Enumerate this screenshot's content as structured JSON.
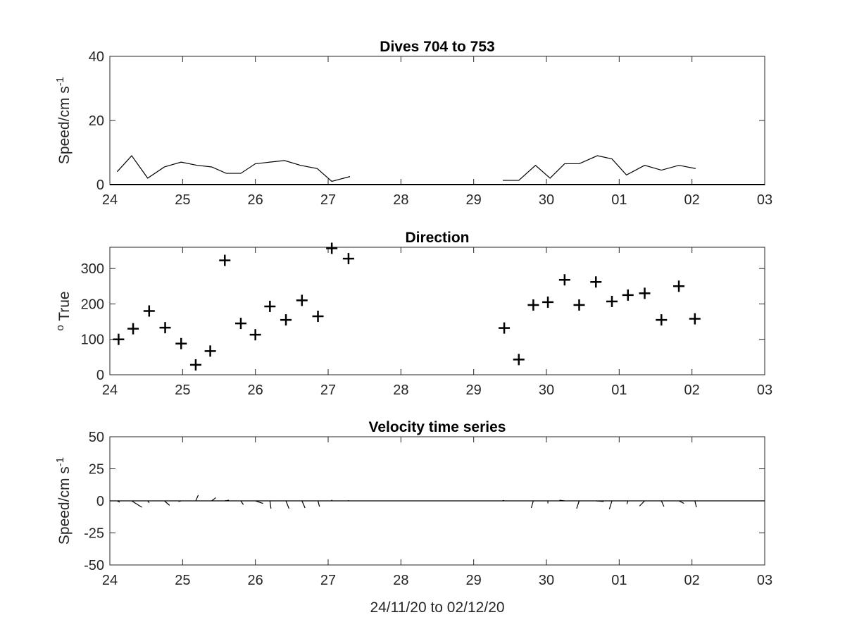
{
  "figure": {
    "xlabel": "24/11/20 to 02/12/20"
  },
  "chart_data": [
    {
      "type": "line",
      "title": "Dives 704 to 753",
      "ylabel": "Speed/cm s",
      "ylabel_superscript": "-1",
      "xlim": [
        0,
        9
      ],
      "ylim": [
        0,
        40
      ],
      "xticks": [
        "24",
        "25",
        "26",
        "27",
        "28",
        "29",
        "30",
        "01",
        "02",
        "03"
      ],
      "yticks": [
        "0",
        "20",
        "40"
      ],
      "grid": false,
      "series": [
        {
          "segments": [
            [
              [
                0.1,
                4.0
              ],
              [
                0.3,
                9.0
              ],
              [
                0.52,
                2.0
              ],
              [
                0.75,
                5.5
              ],
              [
                0.98,
                7.0
              ],
              [
                1.2,
                6.0
              ],
              [
                1.4,
                5.5
              ],
              [
                1.6,
                3.5
              ],
              [
                1.8,
                3.5
              ],
              [
                2.0,
                6.5
              ],
              [
                2.2,
                7.0
              ],
              [
                2.4,
                7.5
              ],
              [
                2.62,
                6.0
              ],
              [
                2.85,
                5.0
              ],
              [
                3.05,
                1.0
              ],
              [
                3.3,
                2.5
              ]
            ],
            [
              [
                5.4,
                1.3
              ],
              [
                5.62,
                1.3
              ],
              [
                5.85,
                6.0
              ],
              [
                6.05,
                2.0
              ],
              [
                6.25,
                6.5
              ],
              [
                6.45,
                6.5
              ],
              [
                6.7,
                9.0
              ],
              [
                6.9,
                8.0
              ],
              [
                7.1,
                3.0
              ],
              [
                7.35,
                6.0
              ],
              [
                7.58,
                4.5
              ],
              [
                7.82,
                6.0
              ],
              [
                8.05,
                5.0
              ]
            ]
          ]
        }
      ]
    },
    {
      "type": "scatter",
      "title": "Direction",
      "ylabel": "True",
      "ylabel_prefix": "o",
      "xlim": [
        0,
        9
      ],
      "ylim": [
        0,
        360
      ],
      "xticks": [
        "24",
        "25",
        "26",
        "27",
        "28",
        "29",
        "30",
        "01",
        "02",
        "03"
      ],
      "yticks": [
        "0",
        "100",
        "200",
        "300"
      ],
      "marker": "+",
      "grid": false,
      "points": [
        [
          0.12,
          100
        ],
        [
          0.32,
          130
        ],
        [
          0.54,
          180
        ],
        [
          0.76,
          133
        ],
        [
          0.98,
          88
        ],
        [
          1.18,
          28
        ],
        [
          1.38,
          67
        ],
        [
          1.58,
          323
        ],
        [
          1.8,
          145
        ],
        [
          2.0,
          113
        ],
        [
          2.2,
          193
        ],
        [
          2.42,
          155
        ],
        [
          2.64,
          210
        ],
        [
          2.86,
          165
        ],
        [
          3.05,
          357
        ],
        [
          3.28,
          328
        ],
        [
          5.42,
          132
        ],
        [
          5.62,
          43
        ],
        [
          5.82,
          197
        ],
        [
          6.02,
          205
        ],
        [
          6.25,
          268
        ],
        [
          6.45,
          197
        ],
        [
          6.68,
          262
        ],
        [
          6.9,
          207
        ],
        [
          7.12,
          225
        ],
        [
          7.35,
          230
        ],
        [
          7.58,
          155
        ],
        [
          7.82,
          250
        ],
        [
          8.04,
          158
        ]
      ]
    },
    {
      "type": "line",
      "title": "Velocity time series",
      "ylabel": "Speed/cm s",
      "ylabel_superscript": "-1",
      "xlim": [
        0,
        9
      ],
      "ylim": [
        -50,
        50
      ],
      "xticks": [
        "24",
        "25",
        "26",
        "27",
        "28",
        "29",
        "30",
        "01",
        "02",
        "03"
      ],
      "yticks": [
        "50",
        "25",
        "0",
        "-25",
        "-50"
      ],
      "grid": false,
      "note_style": "stick plot",
      "sticks": [
        [
          0.1,
          0.5,
          -1.0
        ],
        [
          0.3,
          2.0,
          -5.0
        ],
        [
          0.52,
          0.3,
          -1.5
        ],
        [
          0.75,
          1.0,
          -3.5
        ],
        [
          0.98,
          -0.5,
          -0.5
        ],
        [
          1.18,
          0.5,
          4.5
        ],
        [
          1.4,
          0.8,
          2.5
        ],
        [
          1.58,
          0.8,
          0.5
        ],
        [
          1.8,
          0.5,
          -3.0
        ],
        [
          2.0,
          1.5,
          -2.0
        ],
        [
          2.2,
          0.2,
          -6.0
        ],
        [
          2.42,
          0.6,
          -6.0
        ],
        [
          2.64,
          0.6,
          -5.5
        ],
        [
          2.86,
          0.3,
          -4.5
        ],
        [
          3.05,
          0.0,
          0.8
        ],
        [
          3.28,
          0.0,
          0.5
        ],
        [
          5.42,
          -0.3,
          0.4
        ],
        [
          5.62,
          0.0,
          0.3
        ],
        [
          5.82,
          -0.4,
          -5.5
        ],
        [
          6.02,
          0.0,
          -2.0
        ],
        [
          6.25,
          -1.0,
          0.5
        ],
        [
          6.45,
          -0.5,
          -6.0
        ],
        [
          6.68,
          1.5,
          -0.5
        ],
        [
          6.9,
          -0.5,
          -6.5
        ],
        [
          7.12,
          -0.2,
          -2.5
        ],
        [
          7.35,
          -1.0,
          -4.0
        ],
        [
          7.58,
          0.5,
          -4.5
        ],
        [
          7.82,
          1.0,
          -2.0
        ],
        [
          8.04,
          0.3,
          -5.0
        ]
      ]
    }
  ]
}
